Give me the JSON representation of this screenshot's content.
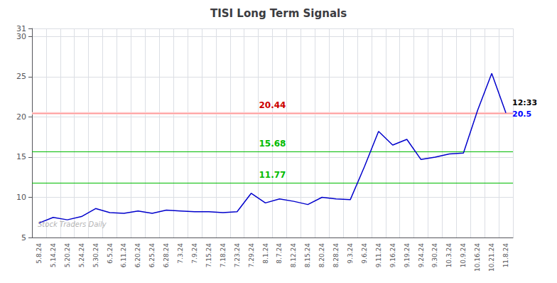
{
  "chart_data": {
    "type": "line",
    "title": "TISI Long Term Signals",
    "categories": [
      "5.8.24",
      "5.14.24",
      "5.20.24",
      "5.24.24",
      "5.30.24",
      "6.5.24",
      "6.11.24",
      "6.20.24",
      "6.25.24",
      "6.28.24",
      "7.3.24",
      "7.9.24",
      "7.15.24",
      "7.18.24",
      "7.23.24",
      "7.29.24",
      "8.1.24",
      "8.7.24",
      "8.12.24",
      "8.15.24",
      "8.20.24",
      "8.28.24",
      "9.3.24",
      "9.6.24",
      "9.11.24",
      "9.16.24",
      "9.19.24",
      "9.24.24",
      "9.30.24",
      "10.3.24",
      "10.9.24",
      "10.16.24",
      "10.21.24",
      "11.8.24"
    ],
    "values": [
      6.8,
      7.5,
      7.2,
      7.6,
      8.6,
      8.1,
      8.0,
      8.3,
      8.0,
      8.4,
      8.3,
      8.2,
      8.2,
      8.1,
      8.2,
      10.5,
      9.3,
      9.8,
      9.5,
      9.1,
      10.0,
      9.8,
      9.7,
      13.8,
      18.2,
      16.5,
      17.2,
      14.7,
      15.0,
      15.4,
      15.5,
      20.8,
      25.4,
      20.5
    ],
    "color": "#0000cc",
    "ylim": [
      5,
      31
    ],
    "yticks": [
      5,
      10,
      15,
      20,
      25,
      30
    ],
    "grid": true,
    "hlines": [
      {
        "value": 20.44,
        "label": "20.44",
        "color": "#cc0000",
        "line_color": "#ff9999",
        "fill_color": "#ffcccc"
      },
      {
        "value": 15.68,
        "label": "15.68",
        "color": "#00bb00",
        "line_color": "#00bb00"
      },
      {
        "value": 11.77,
        "label": "11.77",
        "color": "#00bb00",
        "line_color": "#00bb00"
      }
    ],
    "annotations": [
      {
        "text": "12:33",
        "color": "#000000"
      },
      {
        "text": "20.5",
        "color": "#0000ff"
      }
    ],
    "watermark": {
      "text": "Stock Traders Daily",
      "color": "#aaaaaa"
    }
  }
}
